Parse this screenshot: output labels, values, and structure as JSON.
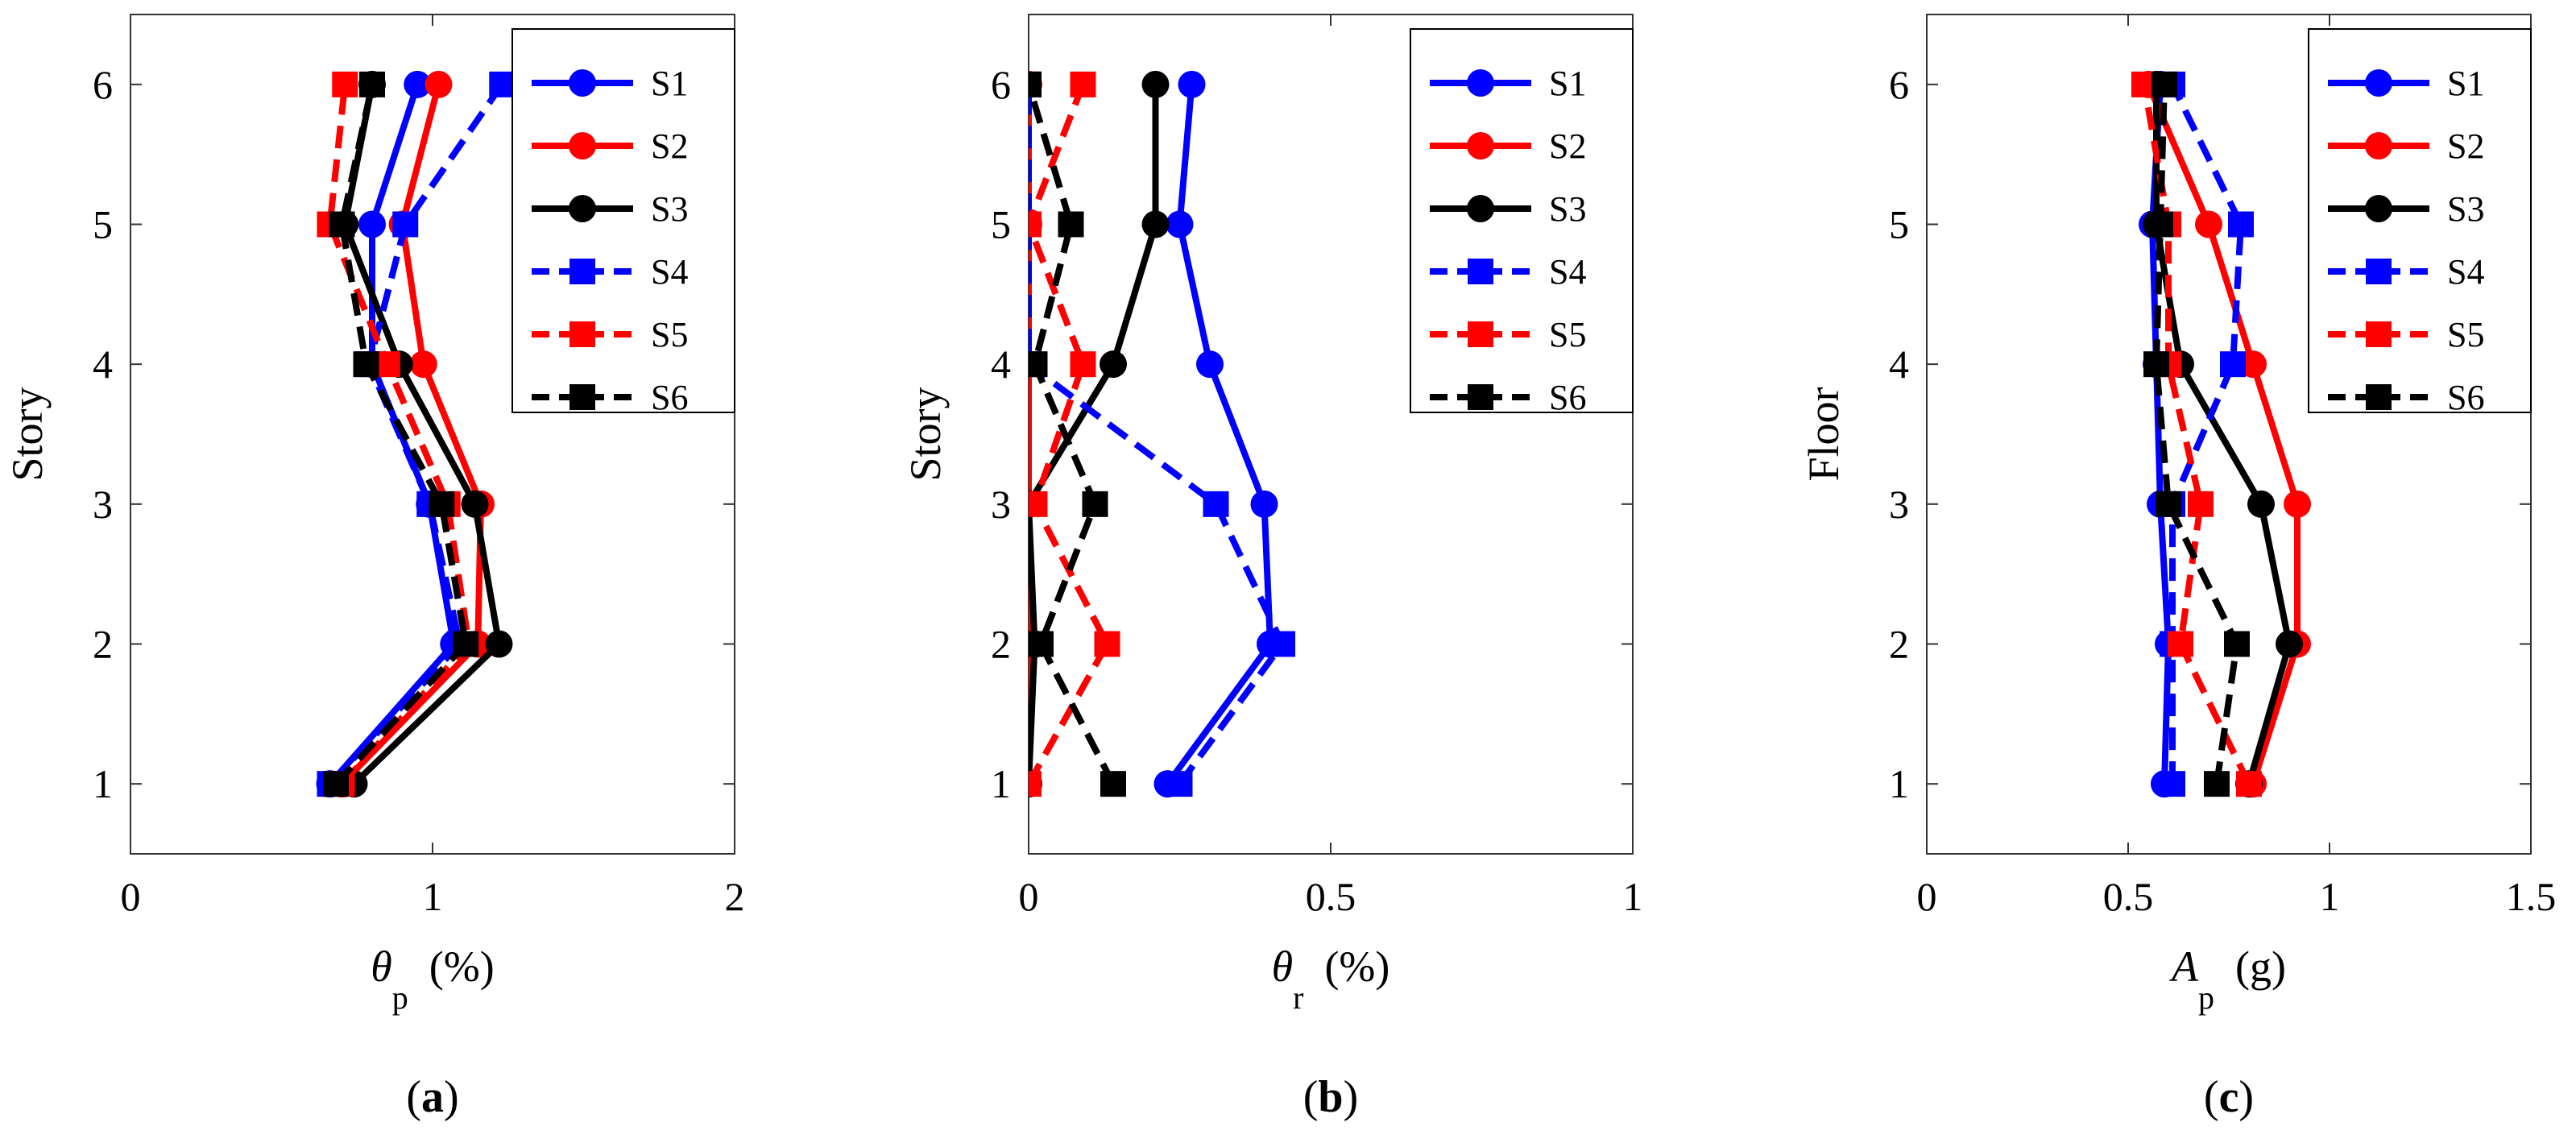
{
  "colors": {
    "blue": "#0000ff",
    "red": "#ff0000",
    "black": "#000000"
  },
  "series_styles": [
    {
      "name": "S1",
      "color": "blue",
      "dash": "solid",
      "marker": "circle"
    },
    {
      "name": "S2",
      "color": "red",
      "dash": "solid",
      "marker": "circle"
    },
    {
      "name": "S3",
      "color": "black",
      "dash": "solid",
      "marker": "circle"
    },
    {
      "name": "S4",
      "color": "blue",
      "dash": "dashed",
      "marker": "square"
    },
    {
      "name": "S5",
      "color": "red",
      "dash": "dashed",
      "marker": "square"
    },
    {
      "name": "S6",
      "color": "black",
      "dash": "dashed",
      "marker": "square"
    }
  ],
  "chart_data": [
    {
      "type": "line",
      "panel_label": "(a)",
      "xlabel": "θ_p (%)",
      "xlabel_symbol": "θ",
      "xlabel_subscript": "p",
      "xlabel_unit": "(%)",
      "ylabel": "Story",
      "xlim": [
        0,
        2
      ],
      "ylim": [
        0.5,
        6.5
      ],
      "xticks": [
        0,
        1,
        2
      ],
      "xtick_labels": [
        "0",
        "1",
        "2"
      ],
      "yticks": [
        1,
        2,
        3,
        4,
        5,
        6
      ],
      "ytick_labels": [
        "1",
        "2",
        "3",
        "4",
        "5",
        "6"
      ],
      "legend": "top-right",
      "y": [
        1,
        2,
        3,
        4,
        5,
        6
      ],
      "series": [
        {
          "name": "S1",
          "values": [
            0.66,
            1.07,
            0.99,
            0.8,
            0.8,
            0.95
          ]
        },
        {
          "name": "S2",
          "values": [
            0.7,
            1.15,
            1.16,
            0.97,
            0.9,
            1.02
          ]
        },
        {
          "name": "S3",
          "values": [
            0.74,
            1.22,
            1.14,
            0.89,
            0.71,
            0.8
          ]
        },
        {
          "name": "S4",
          "values": [
            0.66,
            1.09,
            0.99,
            0.79,
            0.91,
            1.23
          ]
        },
        {
          "name": "S5",
          "values": [
            0.7,
            1.12,
            1.05,
            0.85,
            0.66,
            0.71
          ]
        },
        {
          "name": "S6",
          "values": [
            0.68,
            1.11,
            1.03,
            0.78,
            0.7,
            0.8
          ]
        }
      ]
    },
    {
      "type": "line",
      "panel_label": "(b)",
      "xlabel": "θ_r (%)",
      "xlabel_symbol": "θ",
      "xlabel_subscript": "r",
      "xlabel_unit": "(%)",
      "ylabel": "Story",
      "xlim": [
        0,
        1
      ],
      "ylim": [
        0.5,
        6.5
      ],
      "xticks": [
        0,
        0.5,
        1
      ],
      "xtick_labels": [
        "0",
        "0.5",
        "1"
      ],
      "yticks": [
        1,
        2,
        3,
        4,
        5,
        6
      ],
      "ytick_labels": [
        "1",
        "2",
        "3",
        "4",
        "5",
        "6"
      ],
      "legend": "top-right",
      "y": [
        1,
        2,
        3,
        4,
        5,
        6
      ],
      "series": [
        {
          "name": "S1",
          "values": [
            0.23,
            0.4,
            0.39,
            0.3,
            0.25,
            0.27
          ]
        },
        {
          "name": "S2",
          "values": [
            0.0,
            0.0,
            0.0,
            0.0,
            0.0,
            0.0
          ]
        },
        {
          "name": "S3",
          "values": [
            0.0,
            0.01,
            0.0,
            0.14,
            0.21,
            0.21
          ]
        },
        {
          "name": "S4",
          "values": [
            0.25,
            0.42,
            0.31,
            0.0,
            0.0,
            0.0
          ]
        },
        {
          "name": "S5",
          "values": [
            0.0,
            0.13,
            0.01,
            0.09,
            0.0,
            0.09
          ]
        },
        {
          "name": "S6",
          "values": [
            0.14,
            0.02,
            0.11,
            0.01,
            0.07,
            0.0
          ]
        }
      ]
    },
    {
      "type": "line",
      "panel_label": "(c)",
      "xlabel": "A_p (g)",
      "xlabel_symbol": "A",
      "xlabel_subscript": "p",
      "xlabel_unit": "(g)",
      "ylabel": "Floor",
      "xlim": [
        0,
        1.5
      ],
      "ylim": [
        0.5,
        6.5
      ],
      "xticks": [
        0,
        0.5,
        1,
        1.5
      ],
      "xtick_labels": [
        "0",
        "0.5",
        "1",
        "1.5"
      ],
      "yticks": [
        1,
        2,
        3,
        4,
        5,
        6
      ],
      "ytick_labels": [
        "1",
        "2",
        "3",
        "4",
        "5",
        "6"
      ],
      "legend": "top-right",
      "y": [
        1,
        2,
        3,
        4,
        5,
        6
      ],
      "series": [
        {
          "name": "S1",
          "values": [
            0.59,
            0.6,
            0.58,
            0.57,
            0.56,
            0.58
          ]
        },
        {
          "name": "S2",
          "values": [
            0.81,
            0.92,
            0.92,
            0.81,
            0.7,
            0.55
          ]
        },
        {
          "name": "S3",
          "values": [
            0.8,
            0.9,
            0.83,
            0.63,
            0.57,
            0.57
          ]
        },
        {
          "name": "S4",
          "values": [
            0.61,
            0.61,
            0.61,
            0.76,
            0.78,
            0.61
          ]
        },
        {
          "name": "S5",
          "values": [
            0.8,
            0.63,
            0.68,
            0.6,
            0.6,
            0.54
          ]
        },
        {
          "name": "S6",
          "values": [
            0.72,
            0.77,
            0.6,
            0.57,
            0.58,
            0.59
          ]
        }
      ]
    }
  ]
}
